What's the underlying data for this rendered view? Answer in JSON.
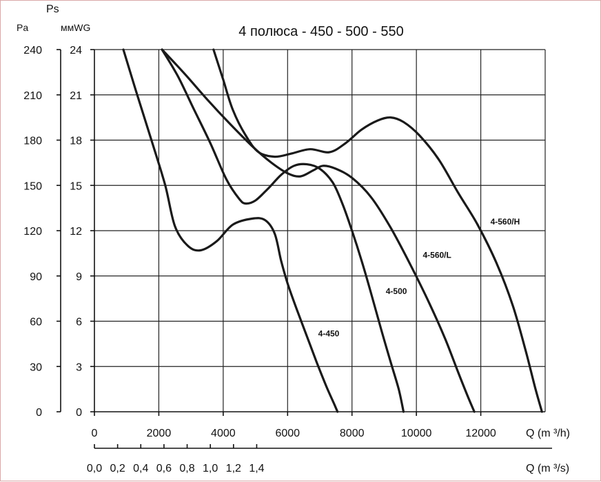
{
  "chart_data": {
    "type": "line",
    "title": "4 полюса - 450 - 500 - 550",
    "ylabel_top": "Ps",
    "ylabel_left": "Pa",
    "ylabel_right": "ммWG",
    "xlabel_primary": "Q  (m ³/h)",
    "xlabel_secondary": "Q  (m ³/s)",
    "xlim": [
      0,
      14000
    ],
    "ylim": [
      0,
      240
    ],
    "x_ticks": [
      0,
      2000,
      4000,
      6000,
      8000,
      10000,
      12000
    ],
    "x_tick_labels": [
      "0",
      "2000",
      "4000",
      "6000",
      "8000",
      "10000",
      "12000"
    ],
    "x2_ticks": [
      0,
      0.2,
      0.4,
      0.6,
      0.8,
      1.0,
      1.2,
      1.4
    ],
    "x2_tick_labels": [
      "0,0",
      "0,2",
      "0,4",
      "0,6",
      "0,8",
      "1,0",
      "1,2",
      "1,4"
    ],
    "y_ticks": [
      0,
      30,
      60,
      90,
      120,
      150,
      180,
      210,
      240
    ],
    "y_tick_labels_pa": [
      "0",
      "30",
      "60",
      "90",
      "120",
      "150",
      "180",
      "210",
      "240"
    ],
    "y_tick_labels_mmwg": [
      "0",
      "3",
      "6",
      "9",
      "12",
      "15",
      "18",
      "21",
      "24"
    ],
    "grid": true,
    "series": [
      {
        "name": "4-450",
        "label": "4-450",
        "label_at": [
          6950,
          50
        ],
        "points": [
          [
            900,
            240
          ],
          [
            1300,
            212
          ],
          [
            1800,
            178
          ],
          [
            2200,
            150
          ],
          [
            2500,
            123
          ],
          [
            2900,
            110
          ],
          [
            3300,
            107
          ],
          [
            3800,
            113
          ],
          [
            4300,
            124
          ],
          [
            4900,
            128
          ],
          [
            5300,
            127
          ],
          [
            5600,
            118
          ],
          [
            5800,
            100
          ],
          [
            6000,
            85
          ],
          [
            6300,
            67
          ],
          [
            6600,
            50
          ],
          [
            6900,
            33
          ],
          [
            7200,
            17
          ],
          [
            7450,
            5
          ],
          [
            7550,
            0
          ]
        ]
      },
      {
        "name": "4-500",
        "label": "4-500",
        "label_at": [
          9050,
          78
        ],
        "points": [
          [
            2100,
            240
          ],
          [
            2600,
            222
          ],
          [
            3100,
            200
          ],
          [
            3600,
            178
          ],
          [
            4100,
            154
          ],
          [
            4500,
            141
          ],
          [
            4700,
            138
          ],
          [
            5000,
            140
          ],
          [
            5400,
            148
          ],
          [
            5800,
            157
          ],
          [
            6200,
            163
          ],
          [
            6600,
            164
          ],
          [
            7000,
            161
          ],
          [
            7400,
            152
          ],
          [
            7700,
            138
          ],
          [
            8000,
            120
          ],
          [
            8300,
            100
          ],
          [
            8600,
            78
          ],
          [
            8900,
            55
          ],
          [
            9200,
            33
          ],
          [
            9450,
            15
          ],
          [
            9600,
            0
          ]
        ]
      },
      {
        "name": "4-560/L",
        "label": "4-560/L",
        "label_at": [
          10200,
          102
        ],
        "points": [
          [
            2100,
            240
          ],
          [
            2800,
            224
          ],
          [
            3500,
            207
          ],
          [
            4200,
            191
          ],
          [
            4900,
            176
          ],
          [
            5500,
            165
          ],
          [
            6000,
            158
          ],
          [
            6400,
            156
          ],
          [
            6800,
            160
          ],
          [
            7100,
            163
          ],
          [
            7500,
            161
          ],
          [
            8000,
            155
          ],
          [
            8600,
            142
          ],
          [
            9200,
            122
          ],
          [
            9800,
            98
          ],
          [
            10400,
            72
          ],
          [
            10900,
            48
          ],
          [
            11300,
            26
          ],
          [
            11600,
            10
          ],
          [
            11800,
            0
          ]
        ]
      },
      {
        "name": "4-560/H",
        "label": "4-560/H",
        "label_at": [
          12300,
          124
        ],
        "points": [
          [
            3700,
            240
          ],
          [
            4000,
            220
          ],
          [
            4300,
            200
          ],
          [
            4700,
            183
          ],
          [
            5100,
            172
          ],
          [
            5600,
            169
          ],
          [
            6100,
            171
          ],
          [
            6700,
            174
          ],
          [
            7300,
            172
          ],
          [
            7800,
            178
          ],
          [
            8300,
            187
          ],
          [
            8800,
            193
          ],
          [
            9200,
            195
          ],
          [
            9600,
            192
          ],
          [
            10100,
            183
          ],
          [
            10700,
            167
          ],
          [
            11300,
            145
          ],
          [
            11900,
            124
          ],
          [
            12500,
            98
          ],
          [
            13000,
            70
          ],
          [
            13400,
            40
          ],
          [
            13700,
            15
          ],
          [
            13900,
            0
          ]
        ]
      }
    ]
  }
}
